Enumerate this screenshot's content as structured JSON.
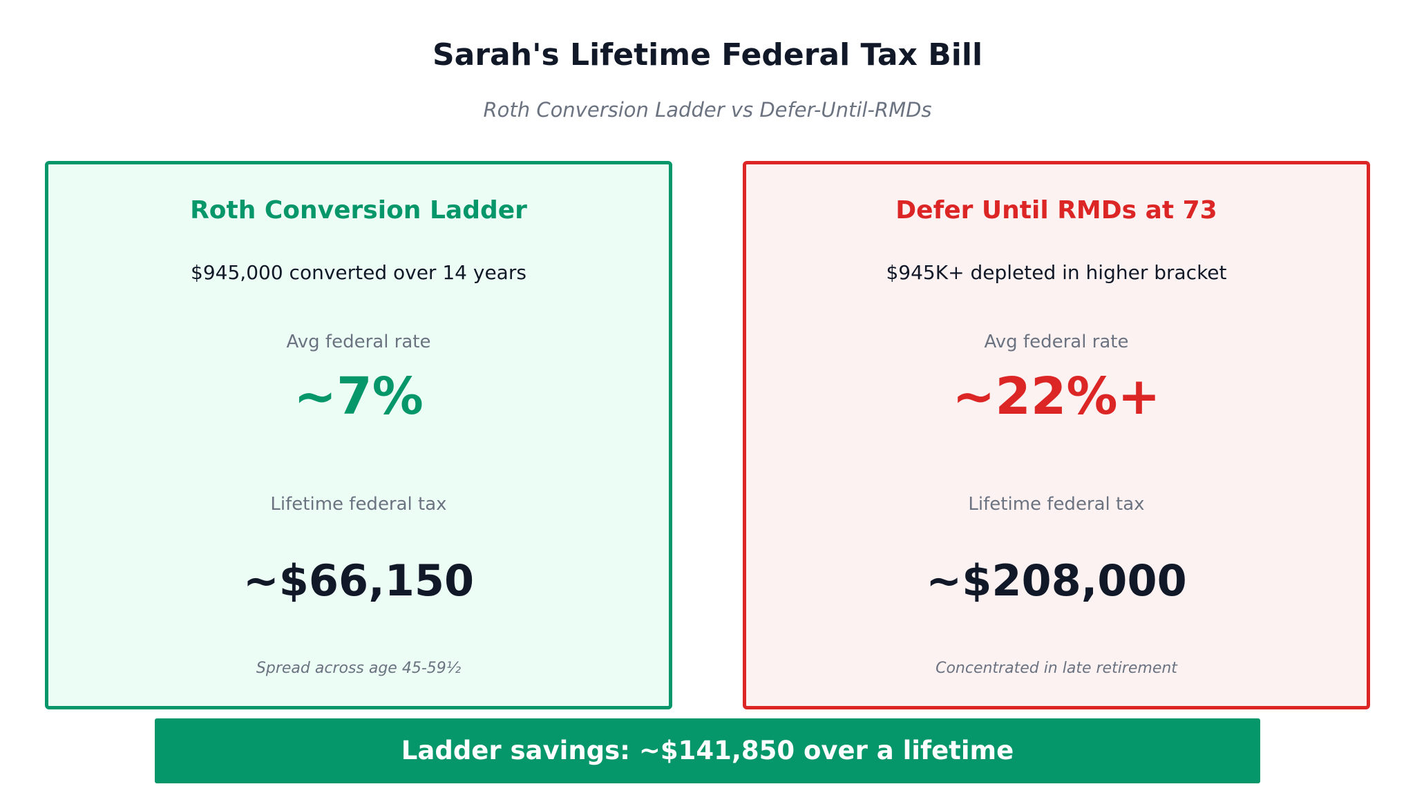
{
  "header": {
    "title": "Sarah's Lifetime Federal Tax Bill",
    "subtitle": "Roth Conversion Ladder vs Defer-Until-RMDs"
  },
  "cards": {
    "ladder": {
      "title": "Roth Conversion Ladder",
      "description": "$945,000 converted over 14 years",
      "rate_label": "Avg federal rate",
      "rate_value": "~7%",
      "tax_label": "Lifetime federal tax",
      "tax_value": "~$66,150",
      "note": "Spread across age 45-59½",
      "accent_color": "#059669",
      "background_color": "#ecfdf5"
    },
    "defer": {
      "title": "Defer Until RMDs at 73",
      "description": "$945K+ depleted in higher bracket",
      "rate_label": "Avg federal rate",
      "rate_value": "~22%+",
      "tax_label": "Lifetime federal tax",
      "tax_value": "~$208,000",
      "note": "Concentrated in late retirement",
      "accent_color": "#dc2626",
      "background_color": "#fdf2f2"
    }
  },
  "banner": {
    "text": "Ladder savings: ~$141,850 over a lifetime",
    "color": "#059669"
  }
}
